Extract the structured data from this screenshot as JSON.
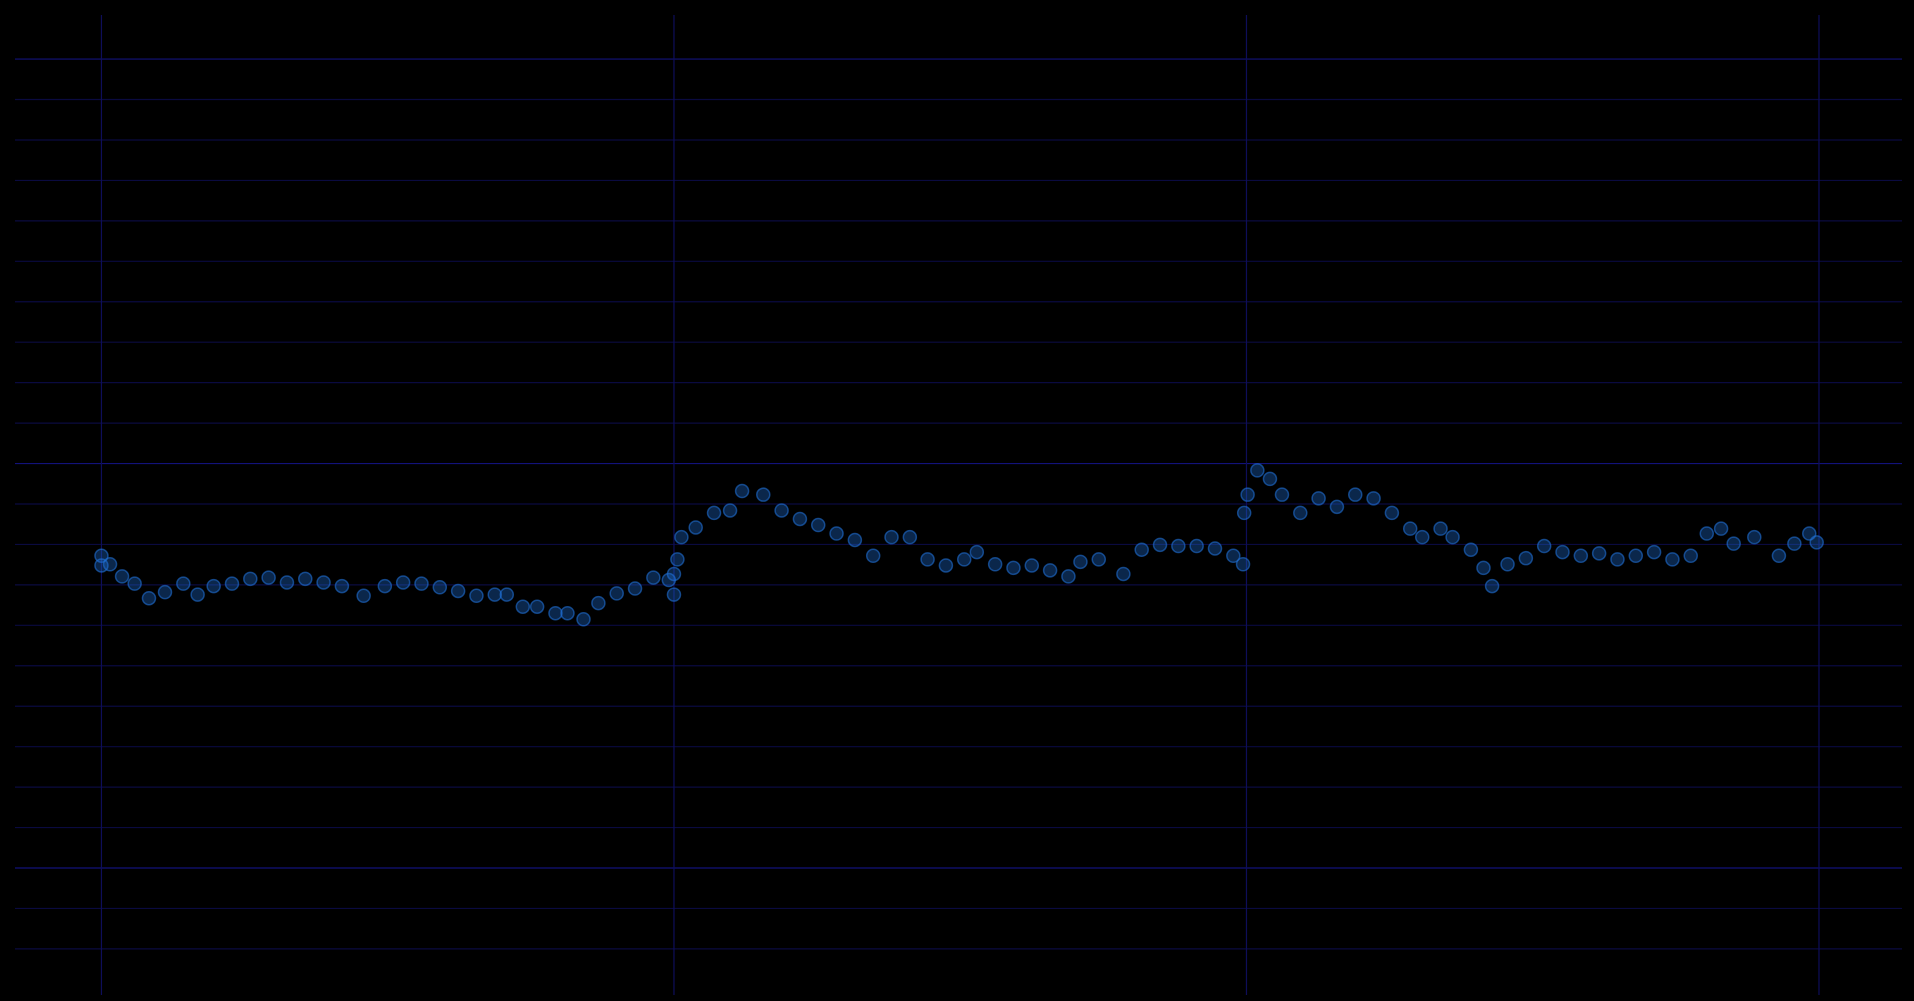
{
  "chart_data": {
    "type": "scatter",
    "x": [
      0,
      0,
      0.015,
      0.036,
      0.058,
      0.083,
      0.111,
      0.143,
      0.168,
      0.196,
      0.228,
      0.26,
      0.292,
      0.324,
      0.356,
      0.388,
      0.42,
      0.458,
      0.495,
      0.527,
      0.559,
      0.591,
      0.623,
      0.655,
      0.687,
      0.708,
      0.736,
      0.761,
      0.793,
      0.814,
      0.842,
      0.868,
      0.9,
      0.932,
      0.964,
      0.991,
      1.0,
      1.0,
      1.006,
      1.013,
      1.038,
      1.07,
      1.098,
      1.119,
      1.156,
      1.188,
      1.22,
      1.252,
      1.284,
      1.316,
      1.348,
      1.38,
      1.412,
      1.443,
      1.475,
      1.507,
      1.529,
      1.561,
      1.593,
      1.625,
      1.657,
      1.689,
      1.71,
      1.742,
      1.785,
      1.817,
      1.849,
      1.881,
      1.913,
      1.945,
      1.977,
      1.994,
      1.996,
      2.002,
      2.019,
      2.041,
      2.062,
      2.094,
      2.126,
      2.158,
      2.19,
      2.222,
      2.254,
      2.286,
      2.307,
      2.339,
      2.36,
      2.392,
      2.414,
      2.429,
      2.456,
      2.488,
      2.52,
      2.552,
      2.584,
      2.616,
      2.648,
      2.68,
      2.712,
      2.744,
      2.776,
      2.804,
      2.829,
      2.851,
      2.887,
      2.93,
      2.957,
      2.983,
      2.996
    ],
    "values": [
      7.72,
      7.48,
      7.51,
      7.21,
      7.03,
      6.67,
      6.82,
      7.03,
      6.76,
      6.97,
      7.03,
      7.15,
      7.18,
      7.06,
      7.15,
      7.06,
      6.97,
      6.73,
      6.97,
      7.06,
      7.03,
      6.94,
      6.85,
      6.73,
      6.76,
      6.76,
      6.46,
      6.46,
      6.3,
      6.3,
      6.15,
      6.55,
      6.79,
      6.91,
      7.18,
      7.12,
      6.76,
      7.27,
      7.63,
      8.18,
      8.42,
      8.78,
      8.84,
      9.32,
      9.23,
      8.84,
      8.63,
      8.48,
      8.27,
      8.11,
      7.72,
      8.18,
      8.18,
      7.63,
      7.48,
      7.63,
      7.81,
      7.51,
      7.42,
      7.48,
      7.36,
      7.21,
      7.57,
      7.63,
      7.27,
      7.87,
      7.99,
      7.96,
      7.96,
      7.9,
      7.72,
      7.51,
      8.78,
      9.23,
      9.83,
      9.62,
      9.23,
      8.78,
      9.14,
      8.93,
      9.23,
      9.14,
      8.78,
      8.39,
      8.18,
      8.39,
      8.18,
      7.87,
      7.42,
      6.97,
      7.51,
      7.66,
      7.96,
      7.81,
      7.72,
      7.78,
      7.63,
      7.72,
      7.81,
      7.63,
      7.72,
      8.27,
      8.39,
      8.02,
      8.18,
      7.72,
      8.02,
      8.27,
      8.05
    ],
    "color": "#1f6fd6",
    "xlim": [
      -0.151,
      3.145
    ],
    "ylim": [
      -3.14,
      21.09
    ],
    "xticks": [
      0,
      1,
      2,
      3
    ],
    "yticks": [
      -2,
      -1,
      0,
      1,
      2,
      3,
      4,
      5,
      6,
      7,
      8,
      9,
      10,
      11,
      12,
      13,
      14,
      15,
      16,
      17,
      18,
      19,
      20
    ],
    "grid": true
  }
}
